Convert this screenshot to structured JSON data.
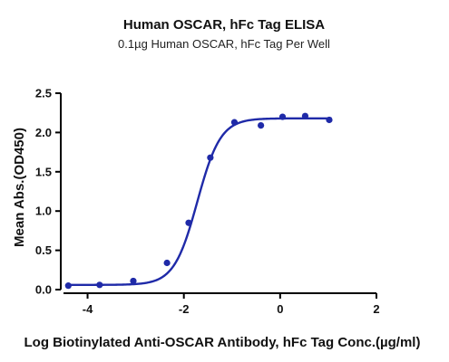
{
  "chart_data": {
    "type": "scatter",
    "title": "Human OSCAR, hFc Tag ELISA",
    "subtitle": "0.1µg Human OSCAR, hFc Tag Per Well",
    "xlabel": "Log Biotinylated Anti-OSCAR Antibody, hFc Tag Conc.(µg/ml)",
    "ylabel": "Mean Abs.(OD450)",
    "xlim": [
      -4.5,
      2
    ],
    "ylim": [
      0,
      2.5
    ],
    "xticks": [
      -4,
      -2,
      0,
      2
    ],
    "yticks": [
      0.0,
      0.5,
      1.0,
      1.5,
      2.0,
      2.5
    ],
    "xtick_labels": [
      "-4",
      "-2",
      "0",
      "2"
    ],
    "ytick_labels": [
      "0.0",
      "0.5",
      "1.0",
      "1.5",
      "2.0",
      "2.5"
    ],
    "grid": false,
    "color": "#1f2aa8",
    "series": [
      {
        "x": [
          -4.4,
          -3.75,
          -3.05,
          -2.35,
          -1.9,
          -1.45,
          -0.95,
          -0.4,
          0.05,
          0.52,
          1.02
        ],
        "y": [
          0.05,
          0.06,
          0.11,
          0.34,
          0.85,
          1.68,
          2.13,
          2.09,
          2.2,
          2.21,
          2.16
        ]
      }
    ],
    "fit": {
      "model": "4PL",
      "bottom": 0.06,
      "top": 2.18,
      "logEC50": -1.72,
      "hill": 1.8
    }
  }
}
